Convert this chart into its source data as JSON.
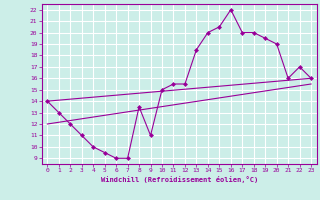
{
  "xlabel": "Windchill (Refroidissement éolien,°C)",
  "background_color": "#cceee8",
  "grid_color": "#ffffff",
  "line_color": "#990099",
  "x_ticks": [
    0,
    1,
    2,
    3,
    4,
    5,
    6,
    7,
    8,
    9,
    10,
    11,
    12,
    13,
    14,
    15,
    16,
    17,
    18,
    19,
    20,
    21,
    22,
    23
  ],
  "y_ticks": [
    9,
    10,
    11,
    12,
    13,
    14,
    15,
    16,
    17,
    18,
    19,
    20,
    21,
    22
  ],
  "xlim": [
    -0.5,
    23.5
  ],
  "ylim": [
    8.5,
    22.5
  ],
  "line1_x": [
    0,
    1,
    2,
    3,
    4,
    5,
    6,
    7,
    8,
    9,
    10,
    11,
    12,
    13,
    14,
    15,
    16,
    17,
    18,
    19,
    20,
    21,
    22,
    23
  ],
  "line1_y": [
    14,
    13,
    12,
    11,
    10,
    9.5,
    9,
    9,
    13.5,
    11,
    15,
    15.5,
    15.5,
    18.5,
    20,
    20.5,
    22,
    20,
    20,
    19.5,
    19,
    16,
    17.0,
    16
  ],
  "line2_x": [
    0,
    23
  ],
  "line2_y": [
    14.0,
    16.0
  ],
  "line3_x": [
    0,
    23
  ],
  "line3_y": [
    12.0,
    15.5
  ]
}
